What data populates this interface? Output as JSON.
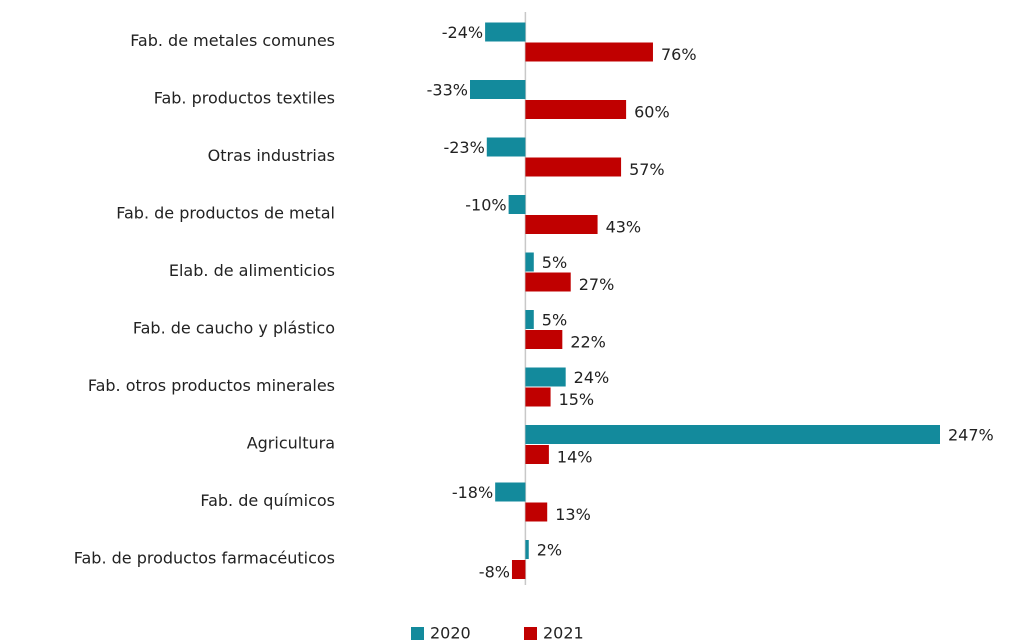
{
  "chart_data": {
    "type": "bar",
    "orientation": "horizontal",
    "categories": [
      "Fab. de metales comunes",
      "Fab. productos textiles",
      "Otras industrias",
      "Fab. de productos de metal",
      "Elab. de alimenticios",
      "Fab. de caucho y plástico",
      "Fab. otros productos minerales",
      "Agricultura",
      "Fab. de químicos",
      "Fab. de productos farmacéuticos"
    ],
    "series": [
      {
        "name": "2020",
        "color": "#138a9c",
        "values": [
          -24,
          -33,
          -23,
          -10,
          5,
          5,
          24,
          247,
          -18,
          2
        ],
        "value_labels": [
          "-24%",
          "-33%",
          "-23%",
          "-10%",
          "5%",
          "5%",
          "24%",
          "247%",
          "-18%",
          "2%"
        ]
      },
      {
        "name": "2021",
        "color": "#c00000",
        "values": [
          76,
          60,
          57,
          43,
          27,
          22,
          15,
          14,
          13,
          -8
        ],
        "value_labels": [
          "76%",
          "60%",
          "57%",
          "43%",
          "27%",
          "22%",
          "15%",
          "14%",
          "13%",
          "-8%"
        ]
      }
    ],
    "legend": "bottom"
  }
}
